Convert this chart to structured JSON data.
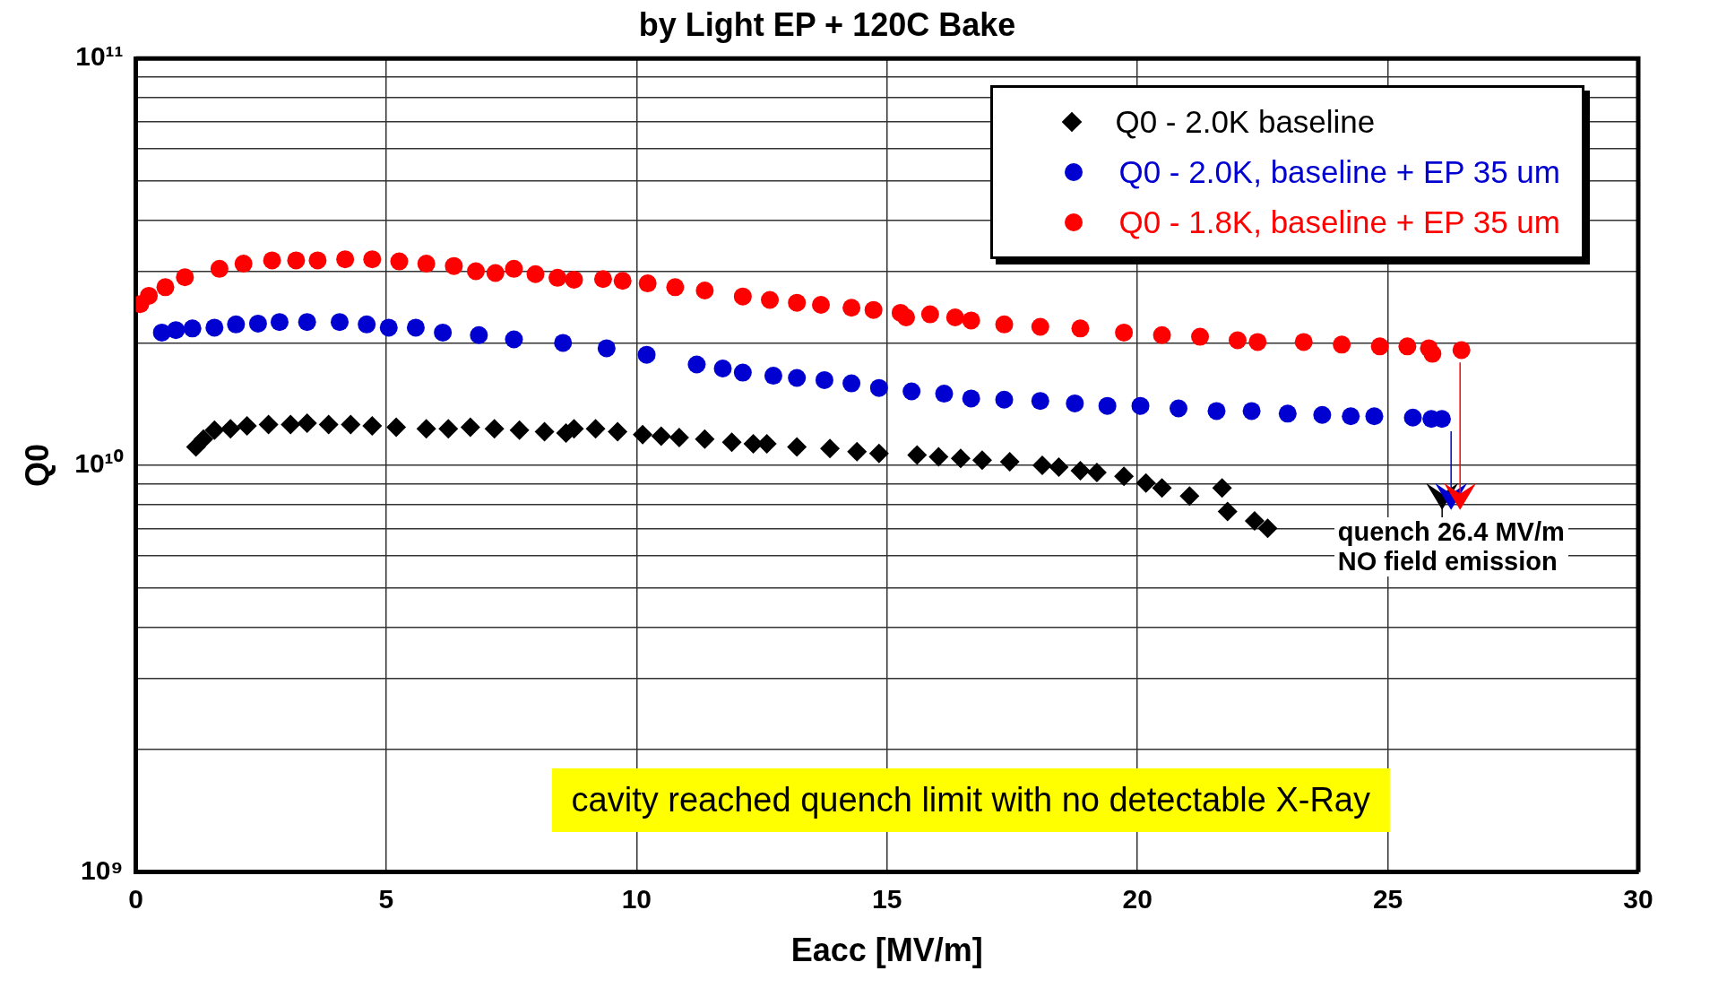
{
  "chart_data": {
    "type": "scatter",
    "title": "by Light EP + 120C Bake",
    "xlabel": "Eacc [MV/m]",
    "ylabel": "Q0",
    "log": "y",
    "grid": true,
    "legend": "top right",
    "xlim": [
      0,
      30
    ],
    "xticks": [
      0,
      5,
      10,
      15,
      20,
      25,
      30
    ],
    "ylim": [
      1000000000.0,
      100000000000.0
    ],
    "yticks": [
      {
        "value": 1000000000.0,
        "label": "10⁹"
      },
      {
        "value": 2000000000.0,
        "label": null
      },
      {
        "value": 3000000000.0,
        "label": null
      },
      {
        "value": 4000000000.0,
        "label": null
      },
      {
        "value": 5000000000.0,
        "label": null
      },
      {
        "value": 6000000000.0,
        "label": null
      },
      {
        "value": 7000000000.0,
        "label": null
      },
      {
        "value": 8000000000.0,
        "label": null
      },
      {
        "value": 9000000000.0,
        "label": null
      },
      {
        "value": 10000000000.0,
        "label": "10¹⁰"
      },
      {
        "value": 20000000000.0,
        "label": null
      },
      {
        "value": 30000000000.0,
        "label": null
      },
      {
        "value": 40000000000.0,
        "label": null
      },
      {
        "value": 50000000000.0,
        "label": null
      },
      {
        "value": 60000000000.0,
        "label": null
      },
      {
        "value": 70000000000.0,
        "label": null
      },
      {
        "value": 80000000000.0,
        "label": null
      },
      {
        "value": 90000000000.0,
        "label": null
      },
      {
        "value": 100000000000.0,
        "label": "10¹¹"
      }
    ],
    "series": [
      {
        "name": "Q0 - 2.0K baseline",
        "color": "#000000",
        "marker": "diamond",
        "x": [
          1.2,
          1.35,
          1.57,
          1.89,
          2.22,
          2.65,
          3.09,
          3.42,
          3.85,
          4.29,
          4.72,
          5.2,
          5.8,
          6.24,
          6.68,
          7.16,
          7.66,
          8.16,
          8.59,
          8.75,
          9.18,
          9.62,
          10.12,
          10.49,
          10.85,
          11.36,
          11.9,
          12.33,
          12.6,
          13.2,
          13.86,
          14.4,
          14.84,
          15.6,
          16.03,
          16.47,
          16.9,
          17.45,
          18.1,
          18.43,
          18.86,
          19.19,
          19.73,
          20.17,
          20.49,
          21.04,
          21.69,
          21.8,
          22.34,
          22.6
        ],
        "values": [
          11100000000.0,
          11600000000.0,
          12200000000.0,
          12300000000.0,
          12500000000.0,
          12600000000.0,
          12600000000.0,
          12700000000.0,
          12600000000.0,
          12600000000.0,
          12500000000.0,
          12400000000.0,
          12300000000.0,
          12300000000.0,
          12400000000.0,
          12300000000.0,
          12200000000.0,
          12100000000.0,
          12000000000.0,
          12300000000.0,
          12300000000.0,
          12100000000.0,
          11900000000.0,
          11800000000.0,
          11700000000.0,
          11600000000.0,
          11400000000.0,
          11300000000.0,
          11300000000.0,
          11100000000.0,
          11000000000.0,
          10800000000.0,
          10700000000.0,
          10600000000.0,
          10500000000.0,
          10400000000.0,
          10300000000.0,
          10200000000.0,
          10000000000.0,
          9900000000.0,
          9700000000.0,
          9600000000.0,
          9400000000.0,
          9050000000.0,
          8800000000.0,
          8400000000.0,
          8800000000.0,
          7700000000.0,
          7300000000.0,
          7000000000.0
        ]
      },
      {
        "name": "Q0 - 2.0K, baseline + EP 35 um",
        "color": "#0000d0",
        "marker": "circle",
        "x": [
          0.52,
          0.8,
          1.13,
          1.57,
          2.0,
          2.44,
          2.87,
          3.42,
          4.07,
          4.61,
          5.05,
          5.59,
          6.13,
          6.85,
          7.55,
          8.53,
          9.4,
          10.2,
          11.2,
          11.72,
          12.12,
          12.73,
          13.2,
          13.75,
          14.29,
          14.84,
          15.49,
          16.14,
          16.68,
          17.34,
          18.06,
          18.75,
          19.4,
          20.06,
          20.82,
          21.58,
          22.28,
          23.0,
          23.69,
          24.26,
          24.73,
          25.5,
          25.87,
          26.08
        ],
        "values": [
          21200000000.0,
          21500000000.0,
          21700000000.0,
          21800000000.0,
          22200000000.0,
          22300000000.0,
          22500000000.0,
          22500000000.0,
          22500000000.0,
          22200000000.0,
          21800000000.0,
          21800000000.0,
          21200000000.0,
          20900000000.0,
          20400000000.0,
          20000000000.0,
          19400000000.0,
          18700000000.0,
          17700000000.0,
          17300000000.0,
          16900000000.0,
          16600000000.0,
          16400000000.0,
          16200000000.0,
          15900000000.0,
          15500000000.0,
          15200000000.0,
          15000000000.0,
          14600000000.0,
          14500000000.0,
          14400000000.0,
          14200000000.0,
          14000000000.0,
          14000000000.0,
          13800000000.0,
          13600000000.0,
          13600000000.0,
          13400000000.0,
          13300000000.0,
          13200000000.0,
          13200000000.0,
          13100000000.0,
          13000000000.0,
          13000000000.0
        ]
      },
      {
        "name": "Q0 - 1.8K, baseline + EP 35 um",
        "color": "#ff0000",
        "marker": "circle",
        "x": [
          0.09,
          0.26,
          0.59,
          0.98,
          1.67,
          2.15,
          2.72,
          3.2,
          3.63,
          4.18,
          4.72,
          5.26,
          5.8,
          6.35,
          6.79,
          7.18,
          7.55,
          7.98,
          8.42,
          8.75,
          9.33,
          9.72,
          10.22,
          10.77,
          11.36,
          12.12,
          12.66,
          13.2,
          13.68,
          14.29,
          14.73,
          15.27,
          15.38,
          15.86,
          16.36,
          16.68,
          17.34,
          18.06,
          18.86,
          19.73,
          20.49,
          21.25,
          22.0,
          22.4,
          23.32,
          24.08,
          24.84,
          25.39,
          25.82,
          25.89,
          26.47
        ],
        "values": [
          24900000000.0,
          26100000000.0,
          27400000000.0,
          29000000000.0,
          30400000000.0,
          31300000000.0,
          31900000000.0,
          31900000000.0,
          31900000000.0,
          32100000000.0,
          32100000000.0,
          31700000000.0,
          31300000000.0,
          30900000000.0,
          30000000000.0,
          29700000000.0,
          30400000000.0,
          29500000000.0,
          28900000000.0,
          28600000000.0,
          28700000000.0,
          28400000000.0,
          28000000000.0,
          27400000000.0,
          26900000000.0,
          26000000000.0,
          25500000000.0,
          25100000000.0,
          24800000000.0,
          24400000000.0,
          24100000000.0,
          23700000000.0,
          23100000000.0,
          23500000000.0,
          23100000000.0,
          22700000000.0,
          22200000000.0,
          21900000000.0,
          21700000000.0,
          21200000000.0,
          20900000000.0,
          20700000000.0,
          20300000000.0,
          20100000000.0,
          20100000000.0,
          19800000000.0,
          19600000000.0,
          19600000000.0,
          19400000000.0,
          18800000000.0,
          19200000000.0
        ]
      }
    ],
    "annotations": [
      "quench 26.4 MV/m\nNO field emission",
      "cavity reached quench limit with no detectable X-Ray"
    ]
  }
}
